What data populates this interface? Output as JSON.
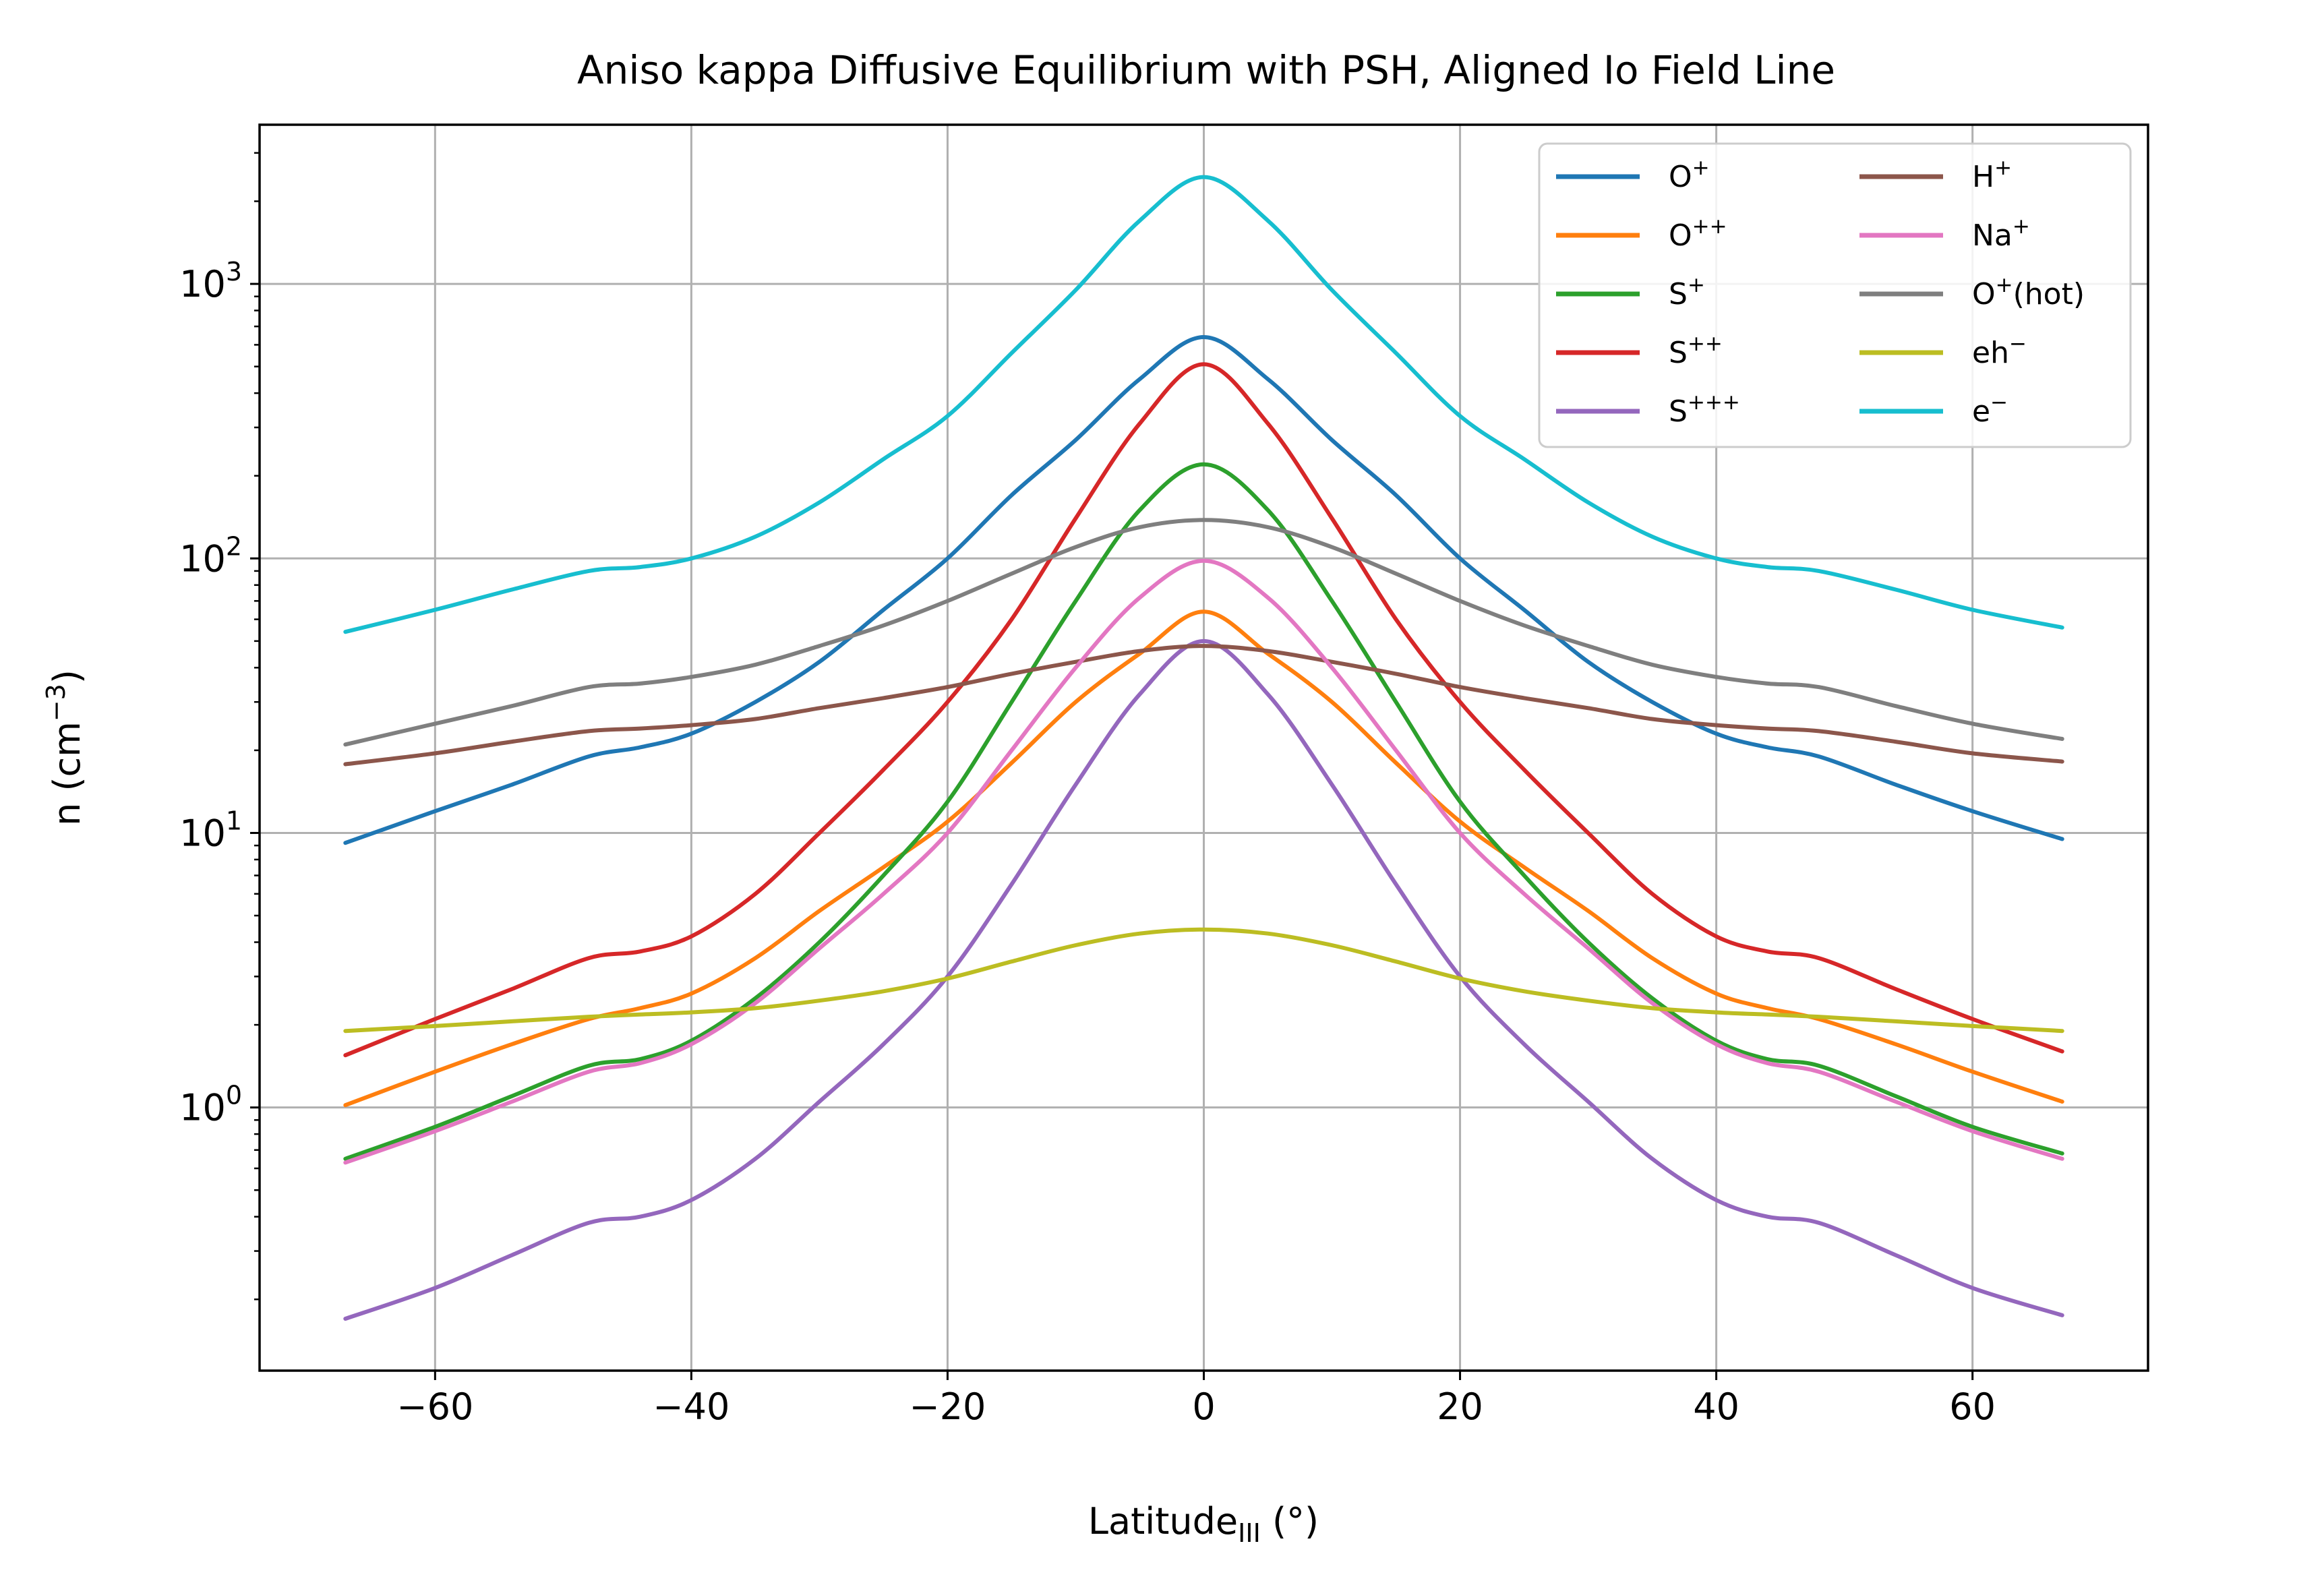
{
  "chart_data": {
    "type": "line",
    "title": "Aniso kappa Diffusive Equilibrium with PSH, Aligned Io Field Line",
    "xlabel": {
      "base": "Latitude",
      "sub": "III",
      "suffix": " (°)"
    },
    "ylabel": {
      "base": "n (cm",
      "sup": "−3",
      "suffix": ")"
    },
    "xlim": [
      -73.7,
      73.7
    ],
    "ylim": [
      0.11,
      3800
    ],
    "yscale": "log",
    "grid": true,
    "legend": {
      "placement": "upper-right",
      "columns": 2
    },
    "x_ticks": [
      {
        "value": -60,
        "label": "−60"
      },
      {
        "value": -40,
        "label": "−40"
      },
      {
        "value": -20,
        "label": "−20"
      },
      {
        "value": 0,
        "label": "0"
      },
      {
        "value": 20,
        "label": "20"
      },
      {
        "value": 40,
        "label": "40"
      },
      {
        "value": 60,
        "label": "60"
      }
    ],
    "y_ticks": [
      {
        "value": 1,
        "base": "10",
        "exp": "0"
      },
      {
        "value": 10,
        "base": "10",
        "exp": "1"
      },
      {
        "value": 100,
        "base": "10",
        "exp": "2"
      },
      {
        "value": 1000,
        "base": "10",
        "exp": "3"
      }
    ],
    "x": [
      -67,
      -60,
      -54,
      -48,
      -44,
      -40,
      -35,
      -30,
      -25,
      -20,
      -15,
      -10,
      -5,
      0,
      5,
      10,
      15,
      20,
      25,
      30,
      35,
      40,
      44,
      48,
      54,
      60,
      67
    ],
    "series": [
      {
        "base": "O",
        "sup": "+",
        "suffix": "",
        "color": "#1f77b4",
        "values": [
          9.2,
          12,
          15,
          19,
          20.5,
          23,
          30,
          42,
          65,
          100,
          170,
          270,
          450,
          640,
          450,
          270,
          170,
          100,
          65,
          42,
          30,
          23,
          20.5,
          19,
          15,
          12,
          9.5
        ]
      },
      {
        "base": "O",
        "sup": "++",
        "suffix": "",
        "color": "#ff7f0e",
        "values": [
          1.02,
          1.35,
          1.7,
          2.1,
          2.3,
          2.6,
          3.5,
          5.2,
          7.5,
          11,
          18,
          30,
          45,
          64,
          45,
          30,
          18,
          11,
          7.5,
          5.2,
          3.5,
          2.6,
          2.3,
          2.1,
          1.7,
          1.35,
          1.05
        ]
      },
      {
        "base": "S",
        "sup": "+",
        "suffix": "",
        "color": "#2ca02c",
        "values": [
          0.65,
          0.85,
          1.1,
          1.42,
          1.5,
          1.75,
          2.5,
          4,
          7,
          13,
          30,
          70,
          150,
          220,
          150,
          70,
          30,
          13,
          7,
          4,
          2.5,
          1.75,
          1.5,
          1.42,
          1.1,
          0.85,
          0.68
        ]
      },
      {
        "base": "S",
        "sup": "++",
        "suffix": "",
        "color": "#d62728",
        "values": [
          1.55,
          2.1,
          2.7,
          3.5,
          3.7,
          4.2,
          6,
          10,
          17,
          30,
          60,
          140,
          310,
          510,
          310,
          140,
          60,
          30,
          17,
          10,
          6,
          4.2,
          3.7,
          3.5,
          2.7,
          2.1,
          1.6
        ]
      },
      {
        "base": "S",
        "sup": "+++",
        "suffix": "",
        "color": "#9467bd",
        "values": [
          0.17,
          0.22,
          0.29,
          0.38,
          0.4,
          0.46,
          0.65,
          1.05,
          1.7,
          3,
          6.5,
          15,
          32,
          50,
          32,
          15,
          6.5,
          3,
          1.7,
          1.05,
          0.65,
          0.46,
          0.4,
          0.38,
          0.29,
          0.22,
          0.175
        ]
      },
      {
        "base": "H",
        "sup": "+",
        "suffix": "",
        "color": "#8c564b",
        "values": [
          17.8,
          19.5,
          21.5,
          23.5,
          24,
          24.7,
          26,
          28.5,
          31,
          34,
          38,
          42,
          46,
          48,
          46,
          42,
          38,
          34,
          31,
          28.5,
          26,
          24.7,
          24,
          23.5,
          21.5,
          19.5,
          18.2
        ]
      },
      {
        "base": "Na",
        "sup": "+",
        "suffix": "",
        "color": "#e377c2",
        "values": [
          0.63,
          0.82,
          1.05,
          1.35,
          1.45,
          1.7,
          2.4,
          3.8,
          6,
          10,
          20,
          40,
          72,
          98,
          72,
          40,
          20,
          10,
          6,
          3.8,
          2.4,
          1.7,
          1.45,
          1.35,
          1.05,
          0.82,
          0.65
        ]
      },
      {
        "base": "O",
        "sup": "+",
        "suffix": "(hot)",
        "color": "#7f7f7f",
        "values": [
          21,
          25,
          29,
          34,
          35,
          37,
          41,
          48,
          57,
          70,
          88,
          110,
          130,
          138,
          130,
          110,
          88,
          70,
          57,
          48,
          41,
          37,
          35,
          34,
          29,
          25,
          22
        ]
      },
      {
        "base": "eh",
        "sup": "−",
        "suffix": "",
        "color": "#bcbd22",
        "values": [
          1.9,
          1.98,
          2.06,
          2.14,
          2.18,
          2.22,
          2.3,
          2.45,
          2.65,
          2.95,
          3.4,
          3.9,
          4.3,
          4.45,
          4.3,
          3.9,
          3.4,
          2.95,
          2.65,
          2.45,
          2.3,
          2.22,
          2.18,
          2.14,
          2.06,
          1.98,
          1.9
        ]
      },
      {
        "base": "e",
        "sup": "−",
        "suffix": "",
        "color": "#17becf",
        "values": [
          54,
          65,
          77,
          90,
          93,
          100,
          120,
          160,
          230,
          330,
          560,
          950,
          1700,
          2450,
          1700,
          950,
          560,
          330,
          230,
          160,
          120,
          100,
          93,
          90,
          77,
          65,
          56
        ]
      }
    ]
  }
}
